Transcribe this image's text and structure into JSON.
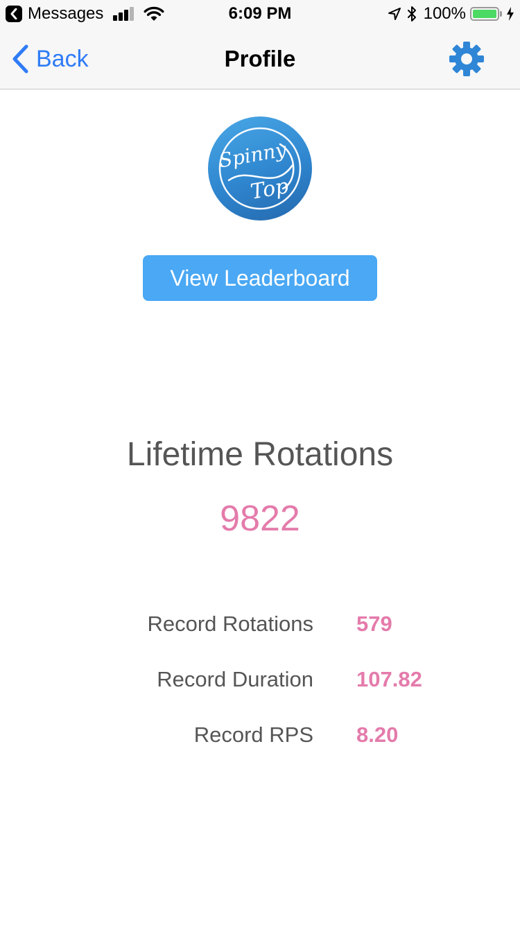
{
  "status_bar": {
    "back_app": "Messages",
    "time": "6:09 PM",
    "battery_percent": "100%",
    "battery_level": 1.0,
    "battery_color": "#4cd964"
  },
  "nav": {
    "back_label": "Back",
    "title": "Profile",
    "settings_icon": "gear-icon",
    "accent_color": "#2f7cf6"
  },
  "logo": {
    "text_line1": "Spinny",
    "text_line2": "Top"
  },
  "leaderboard_button": {
    "label": "View Leaderboard",
    "color": "#4aa8f4"
  },
  "lifetime": {
    "label": "Lifetime Rotations",
    "value": "9822"
  },
  "stats": [
    {
      "label": "Record Rotations",
      "value": "579"
    },
    {
      "label": "Record Duration",
      "value": "107.82"
    },
    {
      "label": "Record RPS",
      "value": "8.20"
    }
  ],
  "value_color": "#e47bab"
}
